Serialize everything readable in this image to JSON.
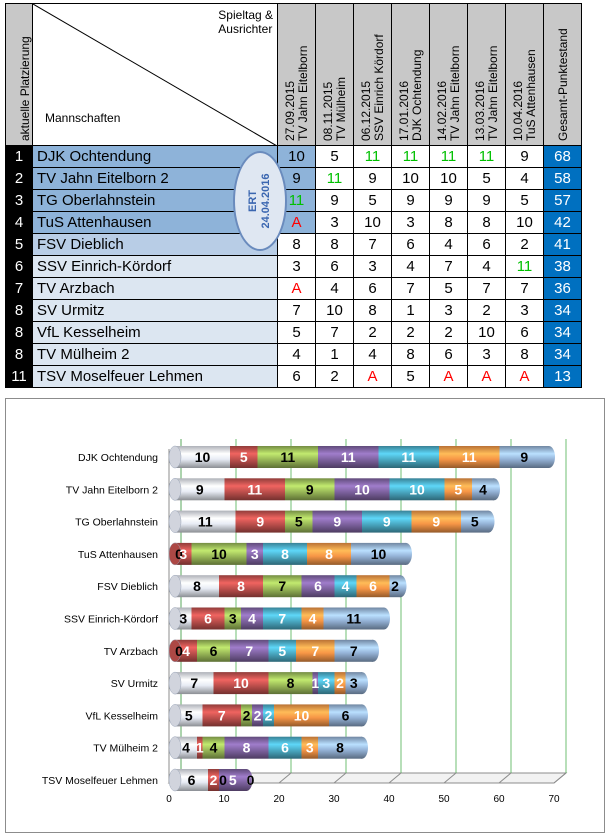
{
  "table": {
    "header_ranking": "aktuelle Platzierung",
    "header_spieltag": "Spieltag &",
    "header_ausrichter": "Ausrichter",
    "header_mannschaften": "Mannschaften",
    "header_total": "Gesamt-Punktestand",
    "rounds": [
      {
        "date": "27.09.2015",
        "host": "TV Jahn Eitelborn"
      },
      {
        "date": "08.11.2015",
        "host": "TV Mülheim"
      },
      {
        "date": "06.12.2015",
        "host": "SSV Einrich Kördorf"
      },
      {
        "date": "17.01.2016",
        "host": "DJK Ochtendung"
      },
      {
        "date": "14.02.2016",
        "host": "TV Jahn Eitelborn"
      },
      {
        "date": "13.03.2016",
        "host": "TV Jahn Eitelborn"
      },
      {
        "date": "10.04.2016",
        "host": "TuS Attenhausen"
      }
    ],
    "ert_label": "ERT",
    "ert_date": "24.04.2016",
    "colors": {
      "header_gray": "#c8c8c8",
      "row_dark": "#8eb3d9",
      "row_mid": "#b8cde6",
      "row_light": "#dce6f1",
      "win_green": "#00c000",
      "absent_red": "#ff0000",
      "total_bg": "#0070c0"
    },
    "rows": [
      {
        "rank": "1",
        "team": "DJK Ochtendung",
        "scores": [
          "10",
          "5",
          "11",
          "11",
          "11",
          "11",
          "9"
        ],
        "total": "68",
        "shade": "dark"
      },
      {
        "rank": "2",
        "team": "TV Jahn Eitelborn 2",
        "scores": [
          "9",
          "11",
          "9",
          "10",
          "10",
          "5",
          "4"
        ],
        "total": "58",
        "shade": "dark"
      },
      {
        "rank": "3",
        "team": "TG Oberlahnstein",
        "scores": [
          "11",
          "9",
          "5",
          "9",
          "9",
          "9",
          "5"
        ],
        "total": "57",
        "shade": "dark"
      },
      {
        "rank": "4",
        "team": "TuS Attenhausen",
        "scores": [
          "A",
          "3",
          "10",
          "3",
          "8",
          "8",
          "10"
        ],
        "total": "42",
        "shade": "dark"
      },
      {
        "rank": "5",
        "team": "FSV Dieblich",
        "scores": [
          "8",
          "8",
          "7",
          "6",
          "4",
          "6",
          "2"
        ],
        "total": "41",
        "shade": "mid"
      },
      {
        "rank": "6",
        "team": "SSV Einrich-Kördorf",
        "scores": [
          "3",
          "6",
          "3",
          "4",
          "7",
          "4",
          "11"
        ],
        "total": "38",
        "shade": "light"
      },
      {
        "rank": "7",
        "team": "TV Arzbach",
        "scores": [
          "A",
          "4",
          "6",
          "7",
          "5",
          "7",
          "7"
        ],
        "total": "36",
        "shade": "light"
      },
      {
        "rank": "8",
        "team": "SV Urmitz",
        "scores": [
          "7",
          "10",
          "8",
          "1",
          "3",
          "2",
          "3"
        ],
        "total": "34",
        "shade": "light"
      },
      {
        "rank": "8",
        "team": "VfL Kesselheim",
        "scores": [
          "5",
          "7",
          "2",
          "2",
          "2",
          "10",
          "6"
        ],
        "total": "34",
        "shade": "light"
      },
      {
        "rank": "8",
        "team": "TV Mülheim 2",
        "scores": [
          "4",
          "1",
          "4",
          "8",
          "6",
          "3",
          "8"
        ],
        "total": "34",
        "shade": "light"
      },
      {
        "rank": "11",
        "team": "TSV Moselfeuer Lehmen",
        "scores": [
          "6",
          "2",
          "A",
          "5",
          "A",
          "A",
          "A"
        ],
        "total": "13",
        "shade": "light"
      }
    ]
  },
  "chart_data": {
    "type": "bar",
    "orientation": "horizontal",
    "stacked": true,
    "style": "3d-cylinder",
    "categories": [
      "DJK Ochtendung",
      "TV Jahn Eitelborn 2",
      "TG Oberlahnstein",
      "TuS Attenhausen",
      "FSV Dieblich",
      "SSV Einrich-Kördorf",
      "TV Arzbach",
      "SV Urmitz",
      "VfL Kesselheim",
      "TV Mülheim 2",
      "TSV Moselfeuer Lehmen"
    ],
    "series": [
      {
        "values": [
          10,
          9,
          11,
          0,
          8,
          3,
          0,
          7,
          5,
          4,
          6
        ],
        "color": "#e8ecf5"
      },
      {
        "values": [
          5,
          11,
          9,
          3,
          8,
          6,
          4,
          10,
          7,
          1,
          2
        ],
        "color": "#c0504d"
      },
      {
        "values": [
          11,
          9,
          5,
          10,
          7,
          3,
          6,
          8,
          2,
          4,
          0
        ],
        "color": "#9bbb59"
      },
      {
        "values": [
          11,
          10,
          9,
          3,
          6,
          4,
          7,
          1,
          2,
          8,
          5
        ],
        "color": "#8064a2"
      },
      {
        "values": [
          11,
          10,
          9,
          8,
          4,
          7,
          5,
          3,
          2,
          6,
          0
        ],
        "color": "#4bacc6"
      },
      {
        "values": [
          11,
          5,
          9,
          8,
          6,
          4,
          7,
          2,
          10,
          3,
          0
        ],
        "color": "#f79646"
      },
      {
        "values": [
          9,
          4,
          5,
          10,
          2,
          11,
          7,
          3,
          6,
          8,
          0
        ],
        "color": "#95b3d7"
      }
    ],
    "xlim": [
      0,
      70
    ],
    "xticks": [
      "0",
      "10",
      "20",
      "30",
      "40",
      "50",
      "60",
      "70"
    ],
    "grid": true
  }
}
